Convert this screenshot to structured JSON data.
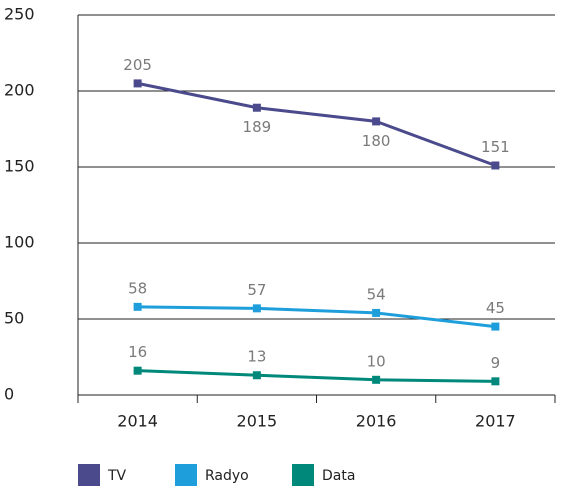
{
  "chart_data": {
    "type": "line",
    "categories": [
      "2014",
      "2015",
      "2016",
      "2017"
    ],
    "series": [
      {
        "name": "TV",
        "color": "#4b4a8c",
        "values": [
          205,
          189,
          180,
          151
        ]
      },
      {
        "name": "Radyo",
        "color": "#1e9fdc",
        "values": [
          58,
          57,
          54,
          45
        ]
      },
      {
        "name": "Data",
        "color": "#00897a",
        "values": [
          16,
          13,
          10,
          9
        ]
      }
    ],
    "ylim": [
      0,
      250
    ],
    "yticks": [
      0,
      50,
      100,
      150,
      200,
      250
    ],
    "grid": true,
    "legend": "bottom"
  }
}
